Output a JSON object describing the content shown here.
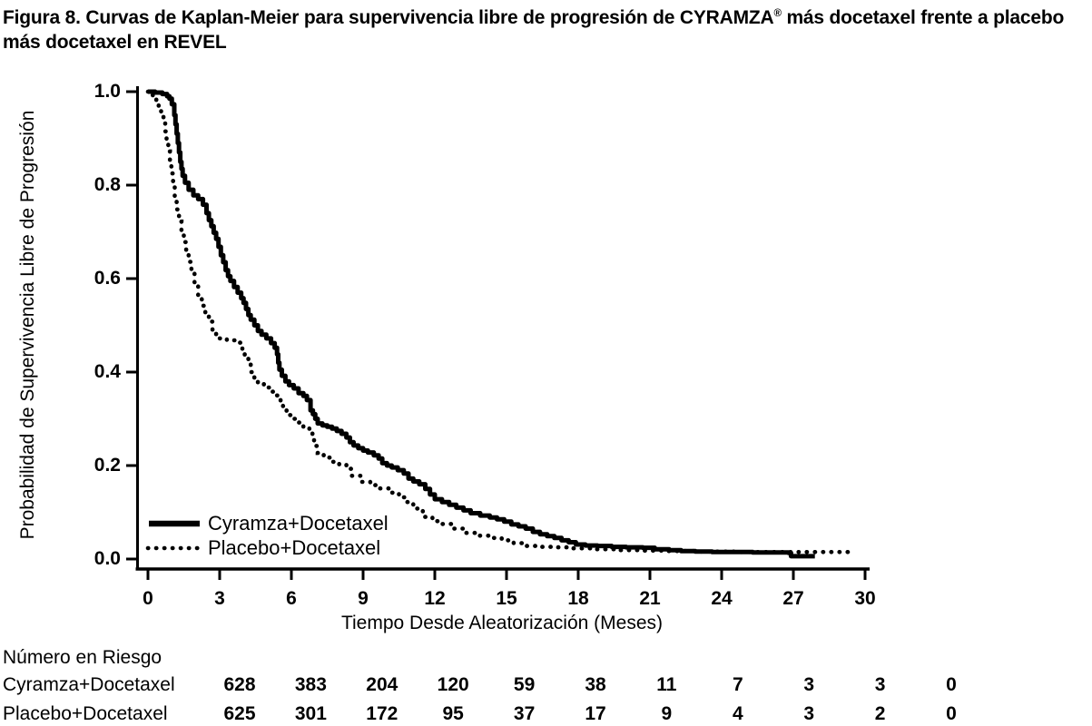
{
  "title": {
    "line1_part1": "Figura 8. Curvas de Kaplan-Meier para supervivencia libre de progresión de CYRAMZA",
    "line1_sup": "®",
    "line1_part2": " más docetaxel frente a placebo",
    "line2": "más docetaxel en REVEL"
  },
  "chart_data": {
    "type": "line",
    "subtype": "kaplan-meier-step",
    "title": "Figura 8. Curvas de Kaplan-Meier para supervivencia libre de progresión de CYRAMZA® más docetaxel frente a placebo más docetaxel en REVEL",
    "xlabel": "Tiempo Desde Aleatorización (Meses)",
    "ylabel": "Probabilidad de Supervivencia Libre de Progresión",
    "xlim": [
      0,
      30
    ],
    "ylim": [
      0.0,
      1.0
    ],
    "x_ticks": [
      "0",
      "3",
      "6",
      "9",
      "12",
      "15",
      "18",
      "21",
      "24",
      "27",
      "30"
    ],
    "y_ticks": [
      "1.0",
      "0.8",
      "0.6",
      "0.4",
      "0.2",
      "0.0"
    ],
    "y_tick_values": [
      1.0,
      0.8,
      0.6,
      0.4,
      0.2,
      0.0
    ],
    "grid": "off",
    "legend_position": "inside-bottom-left",
    "line_color": "#000000",
    "background_color": "#ffffff",
    "series": [
      {
        "name": "Cyramza+Docetaxel",
        "style": "solid",
        "points": [
          [
            0,
            1.0
          ],
          [
            0.3,
            0.998
          ],
          [
            0.6,
            0.995
          ],
          [
            0.8,
            0.99
          ],
          [
            0.9,
            0.985
          ],
          [
            1.0,
            0.973
          ],
          [
            1.1,
            0.95
          ],
          [
            1.15,
            0.93
          ],
          [
            1.2,
            0.91
          ],
          [
            1.25,
            0.89
          ],
          [
            1.3,
            0.87
          ],
          [
            1.35,
            0.85
          ],
          [
            1.4,
            0.835
          ],
          [
            1.45,
            0.82
          ],
          [
            1.55,
            0.805
          ],
          [
            1.7,
            0.79
          ],
          [
            1.9,
            0.778
          ],
          [
            2.1,
            0.77
          ],
          [
            2.3,
            0.758
          ],
          [
            2.45,
            0.74
          ],
          [
            2.55,
            0.725
          ],
          [
            2.65,
            0.712
          ],
          [
            2.75,
            0.698
          ],
          [
            2.85,
            0.685
          ],
          [
            2.95,
            0.668
          ],
          [
            3.05,
            0.65
          ],
          [
            3.15,
            0.635
          ],
          [
            3.25,
            0.618
          ],
          [
            3.35,
            0.605
          ],
          [
            3.45,
            0.595
          ],
          [
            3.6,
            0.582
          ],
          [
            3.75,
            0.57
          ],
          [
            3.9,
            0.558
          ],
          [
            4.0,
            0.548
          ],
          [
            4.1,
            0.535
          ],
          [
            4.2,
            0.522
          ],
          [
            4.3,
            0.512
          ],
          [
            4.45,
            0.5
          ],
          [
            4.6,
            0.488
          ],
          [
            4.75,
            0.48
          ],
          [
            4.95,
            0.472
          ],
          [
            5.15,
            0.462
          ],
          [
            5.3,
            0.452
          ],
          [
            5.4,
            0.438
          ],
          [
            5.45,
            0.42
          ],
          [
            5.5,
            0.405
          ],
          [
            5.6,
            0.392
          ],
          [
            5.75,
            0.38
          ],
          [
            5.9,
            0.372
          ],
          [
            6.1,
            0.365
          ],
          [
            6.3,
            0.355
          ],
          [
            6.5,
            0.349
          ],
          [
            6.65,
            0.34
          ],
          [
            6.8,
            0.318
          ],
          [
            6.9,
            0.31
          ],
          [
            7.0,
            0.3
          ],
          [
            7.1,
            0.29
          ],
          [
            7.3,
            0.286
          ],
          [
            7.5,
            0.283
          ],
          [
            7.7,
            0.279
          ],
          [
            7.9,
            0.274
          ],
          [
            8.1,
            0.268
          ],
          [
            8.3,
            0.26
          ],
          [
            8.45,
            0.25
          ],
          [
            8.6,
            0.243
          ],
          [
            8.8,
            0.237
          ],
          [
            9.0,
            0.232
          ],
          [
            9.2,
            0.228
          ],
          [
            9.45,
            0.222
          ],
          [
            9.65,
            0.215
          ],
          [
            9.8,
            0.205
          ],
          [
            10.0,
            0.2
          ],
          [
            10.2,
            0.196
          ],
          [
            10.45,
            0.19
          ],
          [
            10.7,
            0.183
          ],
          [
            10.9,
            0.172
          ],
          [
            11.1,
            0.166
          ],
          [
            11.35,
            0.16
          ],
          [
            11.6,
            0.15
          ],
          [
            11.8,
            0.138
          ],
          [
            12.0,
            0.128
          ],
          [
            12.3,
            0.122
          ],
          [
            12.6,
            0.116
          ],
          [
            12.9,
            0.11
          ],
          [
            13.2,
            0.104
          ],
          [
            13.5,
            0.098
          ],
          [
            13.9,
            0.093
          ],
          [
            14.3,
            0.089
          ],
          [
            14.6,
            0.085
          ],
          [
            14.9,
            0.08
          ],
          [
            15.2,
            0.074
          ],
          [
            15.5,
            0.07
          ],
          [
            15.8,
            0.065
          ],
          [
            16.1,
            0.058
          ],
          [
            16.4,
            0.053
          ],
          [
            16.7,
            0.049
          ],
          [
            17.0,
            0.045
          ],
          [
            17.3,
            0.04
          ],
          [
            17.6,
            0.036
          ],
          [
            17.9,
            0.031
          ],
          [
            18.3,
            0.029
          ],
          [
            18.8,
            0.028
          ],
          [
            19.4,
            0.026
          ],
          [
            20.0,
            0.025
          ],
          [
            20.7,
            0.024
          ],
          [
            21.2,
            0.021
          ],
          [
            21.8,
            0.019
          ],
          [
            22.3,
            0.017
          ],
          [
            22.9,
            0.016
          ],
          [
            23.6,
            0.015
          ],
          [
            24.5,
            0.015
          ],
          [
            25.3,
            0.014
          ],
          [
            26.0,
            0.014
          ],
          [
            26.8,
            0.013
          ],
          [
            26.9,
            0.006
          ],
          [
            27.9,
            0.006
          ]
        ]
      },
      {
        "name": "Placebo+Docetaxel",
        "style": "dotted",
        "points": [
          [
            0,
            1.0
          ],
          [
            0.2,
            0.992
          ],
          [
            0.35,
            0.98
          ],
          [
            0.45,
            0.965
          ],
          [
            0.55,
            0.95
          ],
          [
            0.65,
            0.935
          ],
          [
            0.72,
            0.915
          ],
          [
            0.78,
            0.895
          ],
          [
            0.85,
            0.872
          ],
          [
            0.92,
            0.85
          ],
          [
            0.98,
            0.825
          ],
          [
            1.05,
            0.8
          ],
          [
            1.12,
            0.775
          ],
          [
            1.2,
            0.748
          ],
          [
            1.3,
            0.722
          ],
          [
            1.4,
            0.7
          ],
          [
            1.5,
            0.678
          ],
          [
            1.6,
            0.657
          ],
          [
            1.7,
            0.636
          ],
          [
            1.82,
            0.615
          ],
          [
            1.95,
            0.592
          ],
          [
            2.1,
            0.565
          ],
          [
            2.25,
            0.542
          ],
          [
            2.4,
            0.525
          ],
          [
            2.55,
            0.508
          ],
          [
            2.7,
            0.49
          ],
          [
            2.85,
            0.478
          ],
          [
            3.0,
            0.472
          ],
          [
            3.3,
            0.468
          ],
          [
            3.7,
            0.463
          ],
          [
            3.95,
            0.448
          ],
          [
            4.05,
            0.432
          ],
          [
            4.2,
            0.418
          ],
          [
            4.3,
            0.4
          ],
          [
            4.45,
            0.386
          ],
          [
            4.6,
            0.376
          ],
          [
            4.85,
            0.367
          ],
          [
            5.1,
            0.358
          ],
          [
            5.35,
            0.35
          ],
          [
            5.55,
            0.338
          ],
          [
            5.65,
            0.32
          ],
          [
            5.8,
            0.308
          ],
          [
            6.0,
            0.3
          ],
          [
            6.25,
            0.292
          ],
          [
            6.5,
            0.283
          ],
          [
            6.75,
            0.27
          ],
          [
            6.88,
            0.258
          ],
          [
            6.95,
            0.242
          ],
          [
            7.1,
            0.227
          ],
          [
            7.35,
            0.217
          ],
          [
            7.7,
            0.208
          ],
          [
            8.0,
            0.202
          ],
          [
            8.3,
            0.193
          ],
          [
            8.5,
            0.178
          ],
          [
            8.9,
            0.165
          ],
          [
            9.3,
            0.158
          ],
          [
            9.7,
            0.151
          ],
          [
            10.1,
            0.142
          ],
          [
            10.5,
            0.132
          ],
          [
            10.85,
            0.122
          ],
          [
            11.1,
            0.108
          ],
          [
            11.5,
            0.09
          ],
          [
            11.9,
            0.081
          ],
          [
            12.3,
            0.075
          ],
          [
            12.8,
            0.065
          ],
          [
            13.3,
            0.056
          ],
          [
            13.8,
            0.05
          ],
          [
            14.3,
            0.045
          ],
          [
            14.8,
            0.04
          ],
          [
            15.3,
            0.034
          ],
          [
            15.8,
            0.028
          ],
          [
            16.3,
            0.026
          ],
          [
            17.0,
            0.025
          ],
          [
            17.8,
            0.023
          ],
          [
            18.5,
            0.021
          ],
          [
            19.5,
            0.019
          ],
          [
            20.5,
            0.018
          ],
          [
            21.5,
            0.017
          ],
          [
            23.0,
            0.016
          ],
          [
            24.5,
            0.015
          ],
          [
            29.4,
            0.015
          ]
        ]
      }
    ]
  },
  "risk_table": {
    "title": "Número en Riesgo",
    "time_points": [
      0,
      3,
      6,
      9,
      12,
      15,
      18,
      21,
      24,
      27,
      30
    ],
    "rows": [
      {
        "label": "Cyramza+Docetaxel",
        "values": [
          "628",
          "383",
          "204",
          "120",
          "59",
          "38",
          "11",
          "7",
          "3",
          "3",
          "0"
        ]
      },
      {
        "label": "Placebo+Docetaxel",
        "values": [
          "625",
          "301",
          "172",
          "95",
          "37",
          "17",
          "9",
          "4",
          "3",
          "2",
          "0"
        ]
      }
    ]
  }
}
